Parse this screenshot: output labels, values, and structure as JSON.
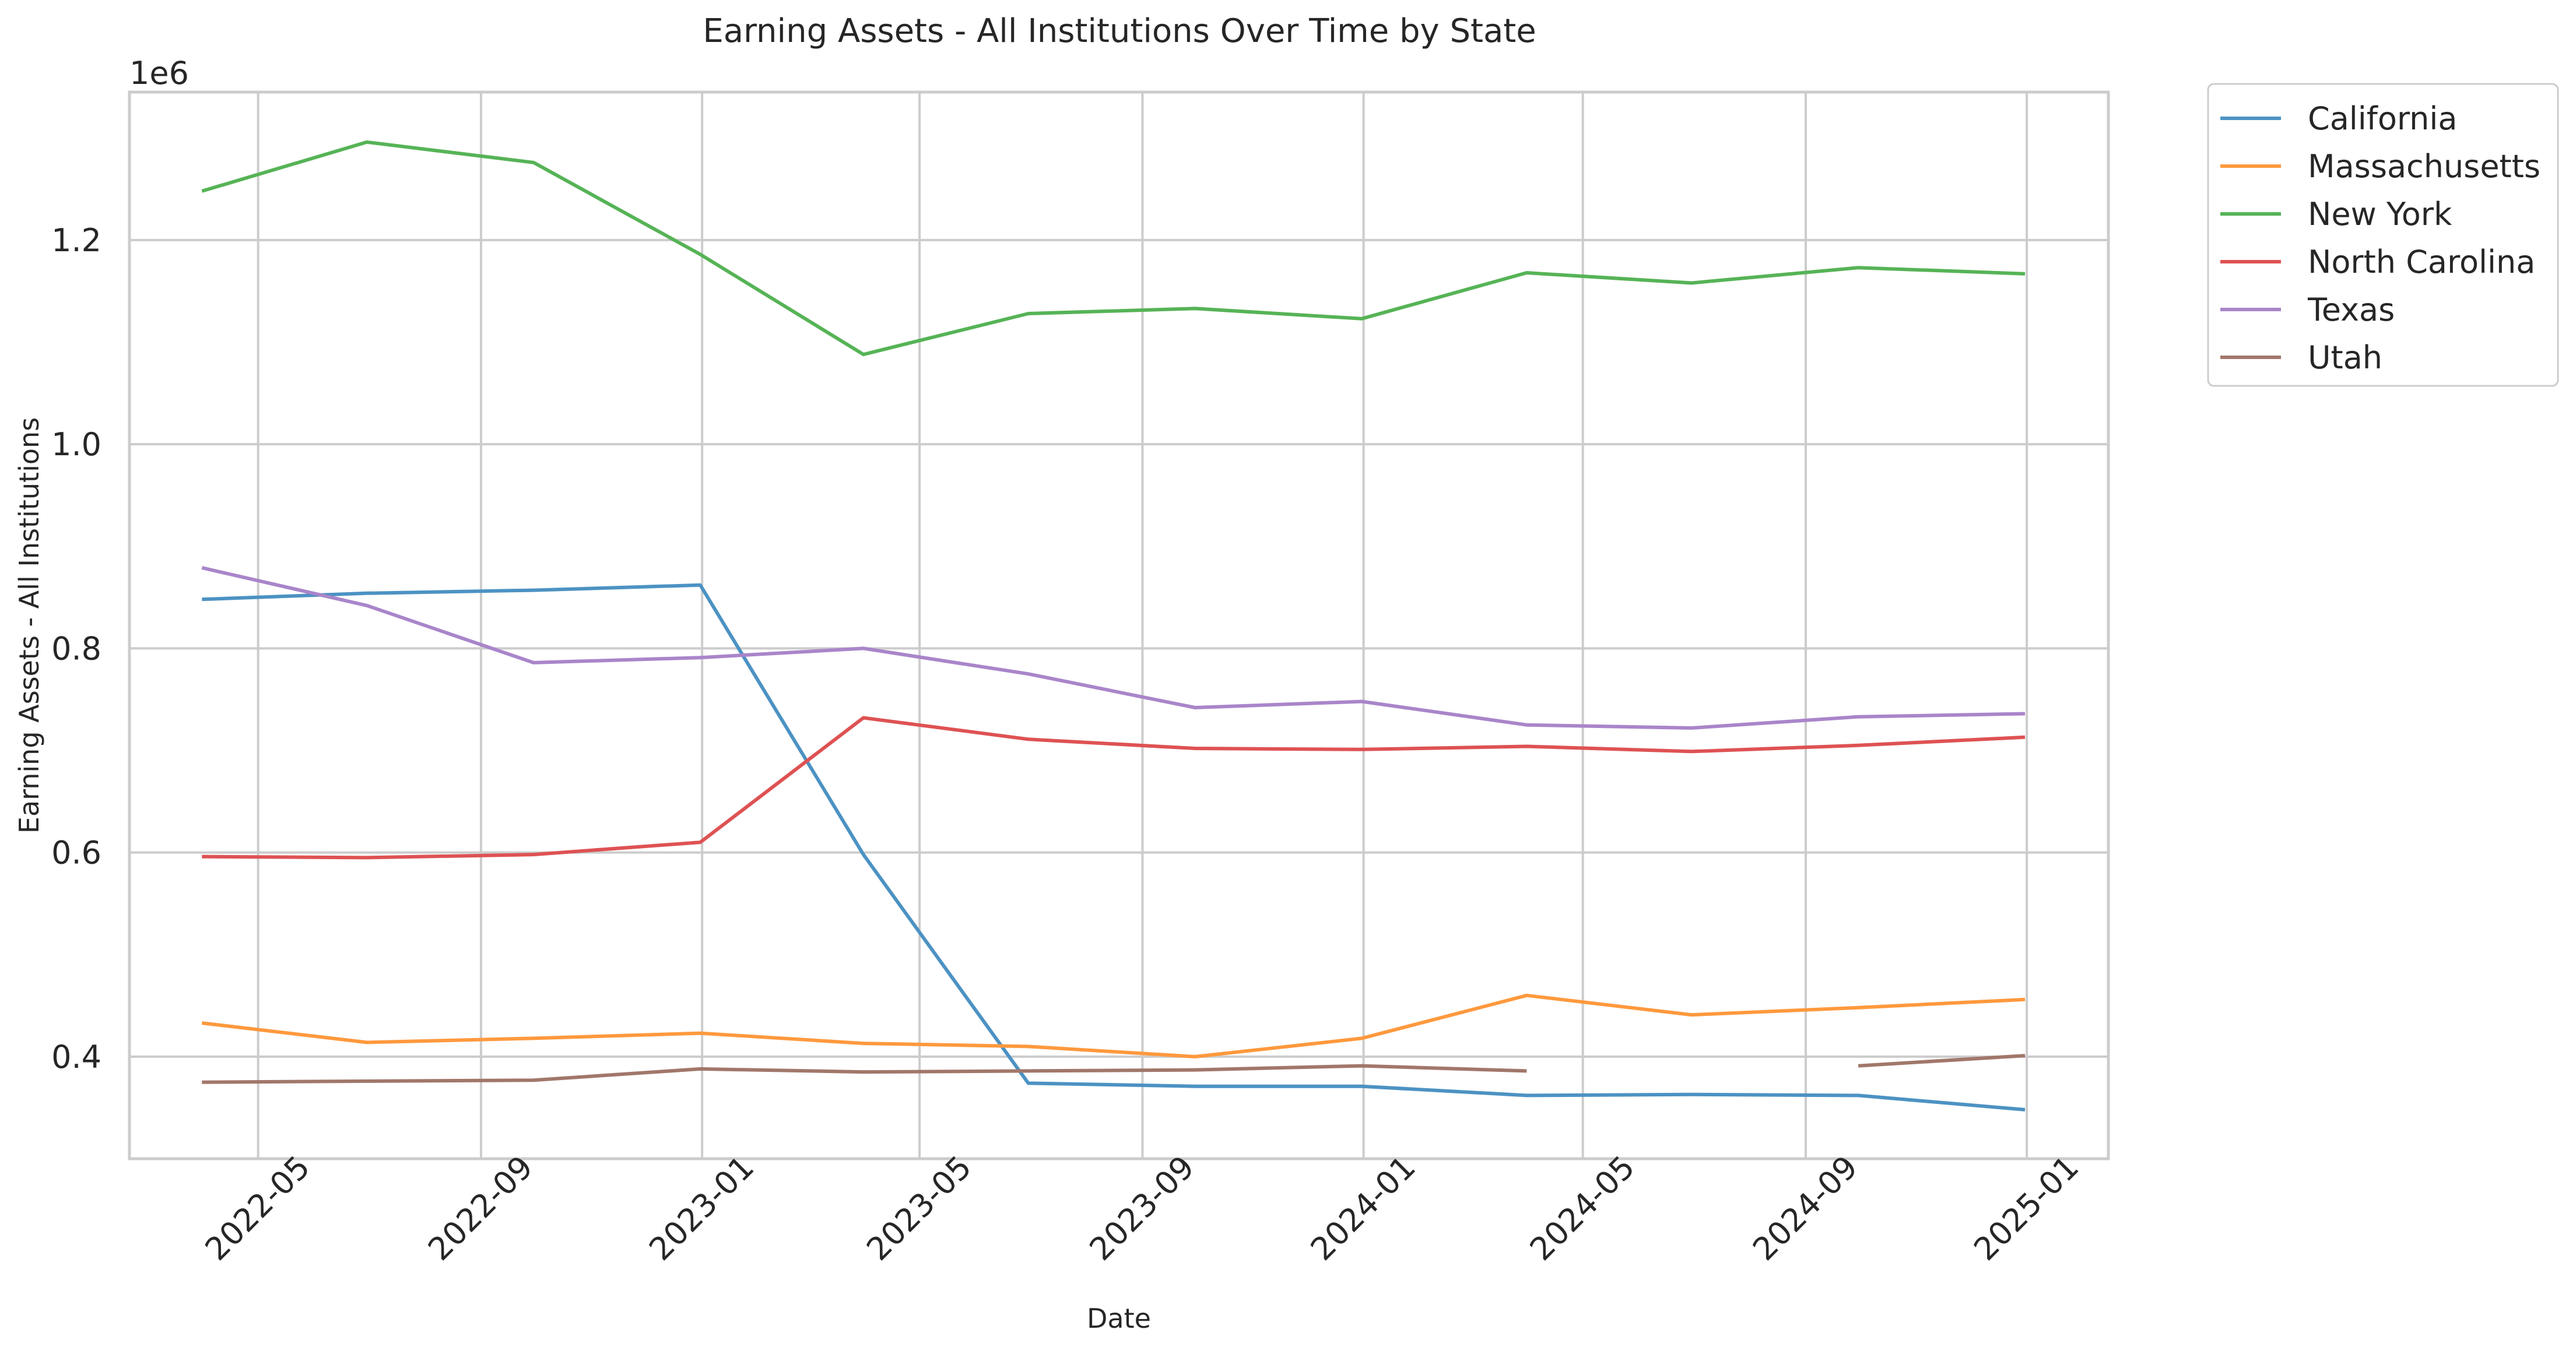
{
  "chart_data": {
    "type": "line",
    "title": "Earning Assets - All Institutions Over Time by State",
    "xlabel": "Date",
    "ylabel": "Earning Assets - All Institutions",
    "y_offset_label": "1e6",
    "ylim": [
      300000,
      1345000
    ],
    "xlim": [
      "2022-02-19",
      "2025-02-15"
    ],
    "x_ticks": [
      "2022-05-01",
      "2022-09-01",
      "2023-01-01",
      "2023-05-01",
      "2023-09-01",
      "2024-01-01",
      "2024-05-01",
      "2024-09-01",
      "2025-01-01"
    ],
    "x_tick_labels": [
      "2022-05",
      "2022-09",
      "2023-01",
      "2023-05",
      "2023-09",
      "2024-01",
      "2024-05",
      "2024-09",
      "2025-01"
    ],
    "y_ticks": [
      400000,
      600000,
      800000,
      1000000,
      1200000
    ],
    "y_tick_labels": [
      "0.4",
      "0.6",
      "0.8",
      "1.0",
      "1.2"
    ],
    "grid": true,
    "legend_position": "outside-top-right",
    "x": [
      "2022-03-31",
      "2022-06-30",
      "2022-09-30",
      "2022-12-31",
      "2023-03-31",
      "2023-06-30",
      "2023-09-30",
      "2023-12-31",
      "2024-03-31",
      "2024-06-30",
      "2024-09-30",
      "2024-12-31"
    ],
    "series": [
      {
        "name": "California",
        "color": "#4c92c3",
        "values": [
          848000,
          854000,
          857000,
          862000,
          598000,
          374000,
          371000,
          371000,
          362000,
          363000,
          362000,
          348000
        ]
      },
      {
        "name": "Massachusetts",
        "color": "#ff993e",
        "values": [
          433000,
          414000,
          418000,
          423000,
          413000,
          410000,
          400000,
          418000,
          460000,
          441000,
          448000,
          456000
        ]
      },
      {
        "name": "New York",
        "color": "#56b356",
        "values": [
          1248000,
          1296000,
          1276000,
          1186000,
          1088000,
          1128000,
          1133000,
          1123000,
          1168000,
          1158000,
          1173000,
          1167000
        ]
      },
      {
        "name": "North Carolina",
        "color": "#de5253",
        "values": [
          596000,
          595000,
          598000,
          610000,
          732000,
          711000,
          702000,
          701000,
          704000,
          699000,
          705000,
          713000
        ]
      },
      {
        "name": "Texas",
        "color": "#a985ca",
        "values": [
          879000,
          842000,
          786000,
          791000,
          800000,
          775000,
          742000,
          748000,
          725000,
          722000,
          733000,
          736000
        ]
      },
      {
        "name": "Utah",
        "color": "#a1776a",
        "values": [
          375000,
          376000,
          377000,
          388000,
          385000,
          386000,
          387000,
          391000,
          386000,
          null,
          391000,
          401000
        ]
      }
    ]
  }
}
